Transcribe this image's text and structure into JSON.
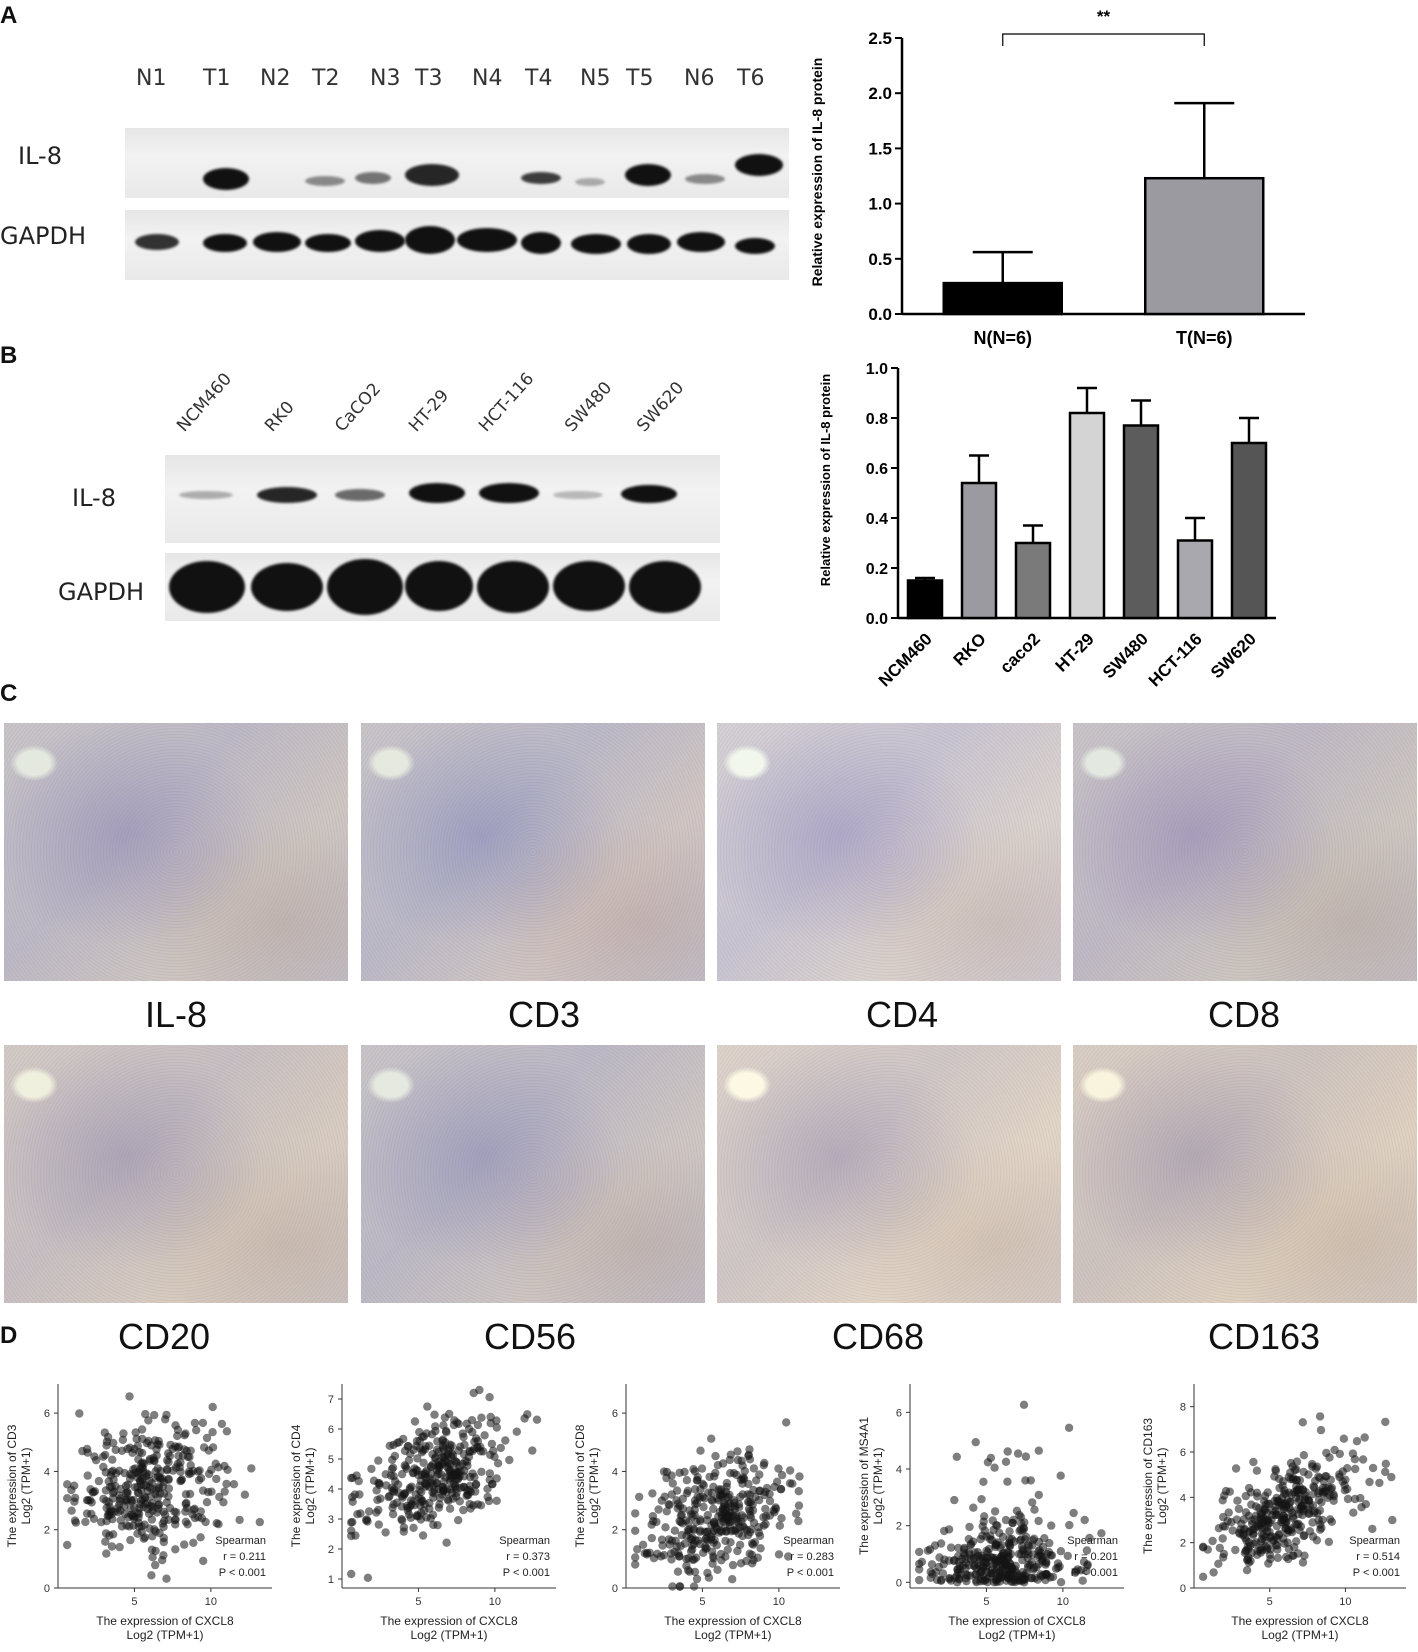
{
  "panels": {
    "a": "A",
    "b": "B",
    "c": "C",
    "d": "D"
  },
  "panel_a": {
    "lanes": [
      "N1",
      "T1",
      "N2",
      "T2",
      "N3",
      "T3",
      "N4",
      "T4",
      "N5",
      "T5",
      "N6",
      "T6"
    ],
    "row1": "IL-8",
    "row2": "GAPDH"
  },
  "panel_b": {
    "lanes": [
      "NCM460",
      "RK0",
      "CaCO2",
      "HT-29",
      "HCT-116",
      "SW480",
      "SW620"
    ],
    "row1": "IL-8",
    "row2": "GAPDH"
  },
  "panel_c": {
    "labels_top": [
      "IL-8",
      "CD3",
      "CD4",
      "CD8"
    ],
    "labels_bottom": [
      "CD20",
      "CD56",
      "CD68",
      "CD163"
    ]
  },
  "chart_data": [
    {
      "type": "bar",
      "categories": [
        "N(N=6)",
        "T(N=6)"
      ],
      "values": [
        0.28,
        1.23
      ],
      "errors": [
        0.28,
        0.68
      ],
      "colors": [
        "#000000",
        "#9a9aa0"
      ],
      "ylabel": "Relative expression of IL-8 protein",
      "ylim": [
        0,
        2.5
      ],
      "yticks": [
        "0.0",
        "0.5",
        "1.0",
        "1.5",
        "2.0",
        "2.5"
      ],
      "significance": "**"
    },
    {
      "type": "bar",
      "categories": [
        "NCM460",
        "RKO",
        "caco2",
        "HT-29",
        "SW480",
        "HCT-116",
        "SW620"
      ],
      "values": [
        0.15,
        0.54,
        0.3,
        0.82,
        0.77,
        0.31,
        0.7
      ],
      "errors": [
        0.01,
        0.11,
        0.07,
        0.1,
        0.1,
        0.09,
        0.1
      ],
      "colors": [
        "#000000",
        "#9a9aa0",
        "#7a7a7a",
        "#d4d4d4",
        "#5c5c5c",
        "#a8a8ae",
        "#555555"
      ],
      "ylabel": "Relative expression of IL-8 protein",
      "ylim": [
        0,
        1.0
      ],
      "yticks": [
        "0.0",
        "0.2",
        "0.4",
        "0.6",
        "0.8",
        "1.0"
      ]
    },
    {
      "type": "scatter",
      "ylabel_line1": "The expression of CD3",
      "ylabel_line2": "Log2 (TPM+1)",
      "xlabel_line1": "The expression of CXCL8",
      "xlabel_line2": "Log2 (TPM+1)",
      "xlim": [
        0,
        14
      ],
      "ylim": [
        0,
        7
      ],
      "xticks": [
        5,
        10
      ],
      "yticks": [
        0,
        2,
        4,
        6
      ],
      "stats": [
        "Spearman",
        "r = 0.211",
        "P < 0.001"
      ],
      "center": [
        6.0,
        3.5
      ],
      "spread": [
        2.4,
        1.1
      ],
      "r": 0.211
    },
    {
      "type": "scatter",
      "ylabel_line1": "The expression of CD4",
      "ylabel_line2": "Log2 (TPM+1)",
      "xlabel_line1": "The expression of CXCL8",
      "xlabel_line2": "Log2 (TPM+1)",
      "xlim": [
        0,
        14
      ],
      "ylim": [
        0.7,
        7.5
      ],
      "xticks": [
        5,
        10
      ],
      "yticks": [
        1,
        2,
        3,
        4,
        5,
        6,
        7
      ],
      "stats": [
        "Spearman",
        "r = 0.373",
        "P < 0.001"
      ],
      "center": [
        6.0,
        4.5
      ],
      "spread": [
        2.4,
        1.0
      ],
      "r": 0.373
    },
    {
      "type": "scatter",
      "ylabel_line1": "The expression of CD8",
      "ylabel_line2": "Log2 (TPM+1)",
      "xlabel_line1": "The expression of CXCL8",
      "xlabel_line2": "Log2 (TPM+1)",
      "xlim": [
        0,
        14
      ],
      "ylim": [
        0,
        7
      ],
      "xticks": [
        5,
        10
      ],
      "yticks": [
        0,
        2,
        4,
        6
      ],
      "stats": [
        "Spearman",
        "r = 0.283",
        "P < 0.001"
      ],
      "center": [
        6.0,
        2.4
      ],
      "spread": [
        2.4,
        1.1
      ],
      "r": 0.283
    },
    {
      "type": "scatter",
      "ylabel_line1": "The expression of MS4A1",
      "ylabel_line2": "Log2 (TPM+1)",
      "xlabel_line1": "The expression of CXCL8",
      "xlabel_line2": "Log2 (TPM+1)",
      "xlim": [
        0,
        14
      ],
      "ylim": [
        -0.2,
        7
      ],
      "xticks": [
        5,
        10
      ],
      "yticks": [
        0,
        2,
        4,
        6
      ],
      "stats": [
        "Spearman",
        "r = 0.201",
        "P < 0.001"
      ],
      "center": [
        6.0,
        0.7
      ],
      "spread": [
        2.4,
        0.8
      ],
      "r": 0.201
    },
    {
      "type": "scatter",
      "ylabel_line1": "The expression of CD163",
      "ylabel_line2": "Log2 (TPM+1)",
      "xlabel_line1": "The expression of CXCL8",
      "xlabel_line2": "Log2 (TPM+1)",
      "xlim": [
        0,
        14
      ],
      "ylim": [
        0,
        9
      ],
      "xticks": [
        5,
        10
      ],
      "yticks": [
        0,
        2,
        4,
        6,
        8
      ],
      "stats": [
        "Spearman",
        "r = 0.514",
        "P < 0.001"
      ],
      "center": [
        6.0,
        3.4
      ],
      "spread": [
        2.4,
        1.3
      ],
      "r": 0.514
    }
  ]
}
